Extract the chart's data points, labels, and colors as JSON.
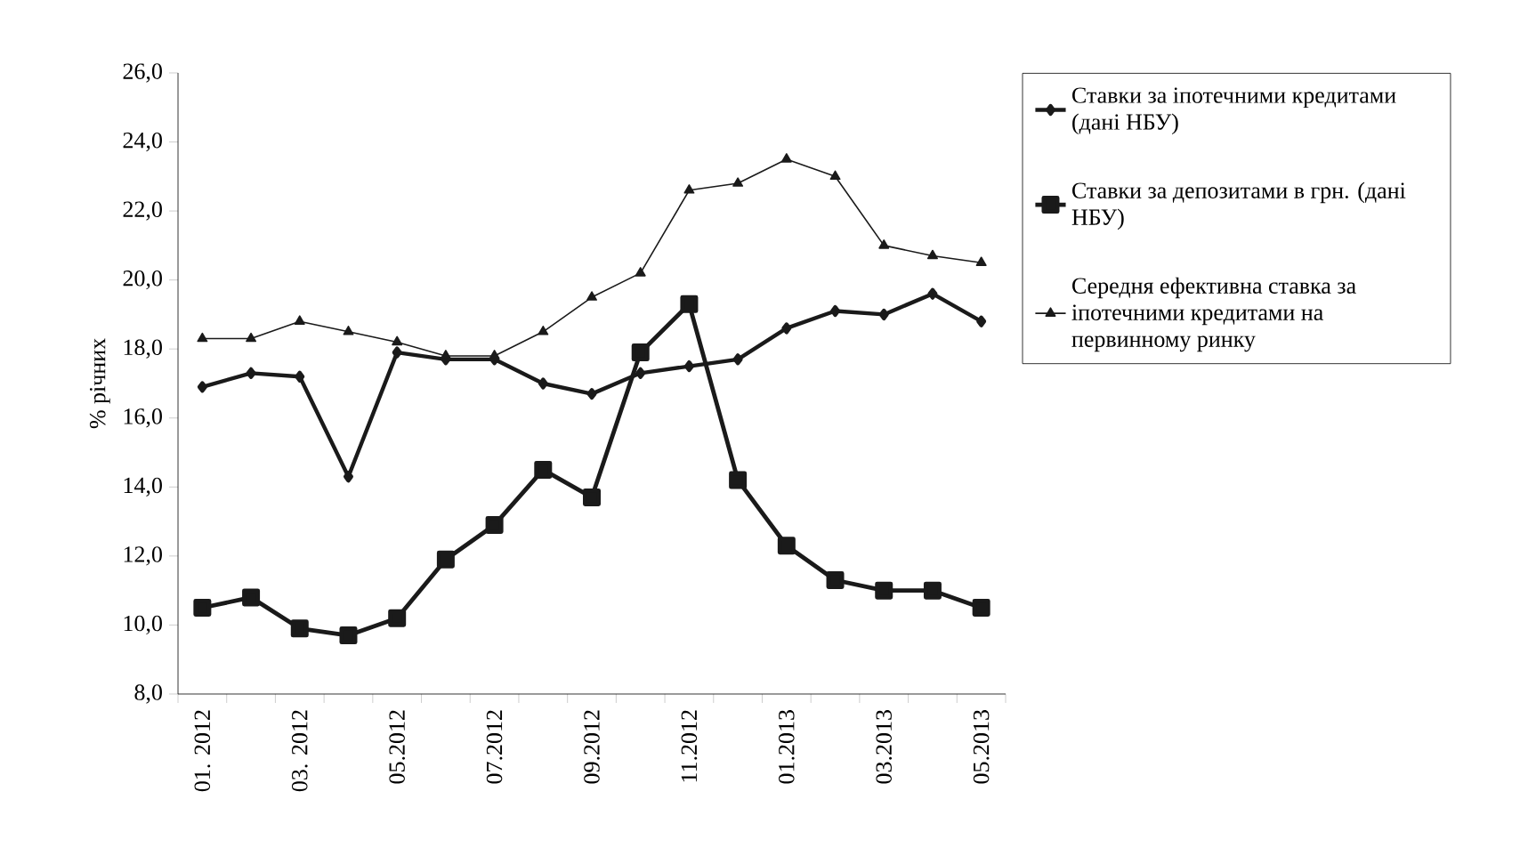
{
  "chart_data": {
    "type": "line",
    "ylabel": "% річних",
    "categories": [
      "01. 2012",
      null,
      "03. 2012",
      null,
      "05.2012",
      null,
      "07.2012",
      null,
      "09.2012",
      null,
      "11.2012",
      null,
      "01.2013",
      null,
      "03.2013",
      null,
      "05.2013"
    ],
    "ylim": [
      8,
      26
    ],
    "yticks": [
      {
        "value": 8,
        "label": "8,0"
      },
      {
        "value": 10,
        "label": "10,0"
      },
      {
        "value": 12,
        "label": "12,0"
      },
      {
        "value": 14,
        "label": "14,0"
      },
      {
        "value": 16,
        "label": "16,0"
      },
      {
        "value": 18,
        "label": "18,0"
      },
      {
        "value": 20,
        "label": "20,0"
      },
      {
        "value": 22,
        "label": "22,0"
      },
      {
        "value": 24,
        "label": "24,0"
      },
      {
        "value": 26,
        "label": "26,0"
      }
    ],
    "legend": "right",
    "grid": false,
    "line_style": "solid",
    "series": [
      {
        "name": "Ставки за іпотечними кредитами (дані НБУ)",
        "color": "#1a1a1a",
        "marker": "diamond",
        "values": [
          16.9,
          17.3,
          17.2,
          14.3,
          17.9,
          17.7,
          17.7,
          17.0,
          16.7,
          17.3,
          17.5,
          17.7,
          18.6,
          19.1,
          19.0,
          19.6,
          18.8
        ]
      },
      {
        "name": "Ставки за депозитами в грн. (дані НБУ)",
        "color": "#1a1a1a",
        "marker": "square",
        "values": [
          10.5,
          10.8,
          9.9,
          9.7,
          10.2,
          11.9,
          12.9,
          14.5,
          13.7,
          17.9,
          19.3,
          14.2,
          12.3,
          11.3,
          11.0,
          11.0,
          10.5
        ]
      },
      {
        "name": "Середня ефективна ставка за іпотечними кредитами на первинному ринку",
        "color": "#1a1a1a",
        "marker": "triangle",
        "values": [
          18.3,
          18.3,
          18.8,
          18.5,
          18.2,
          17.8,
          17.8,
          18.5,
          19.5,
          20.2,
          22.6,
          22.8,
          23.5,
          23.0,
          21.0,
          20.7,
          20.5
        ]
      }
    ]
  }
}
